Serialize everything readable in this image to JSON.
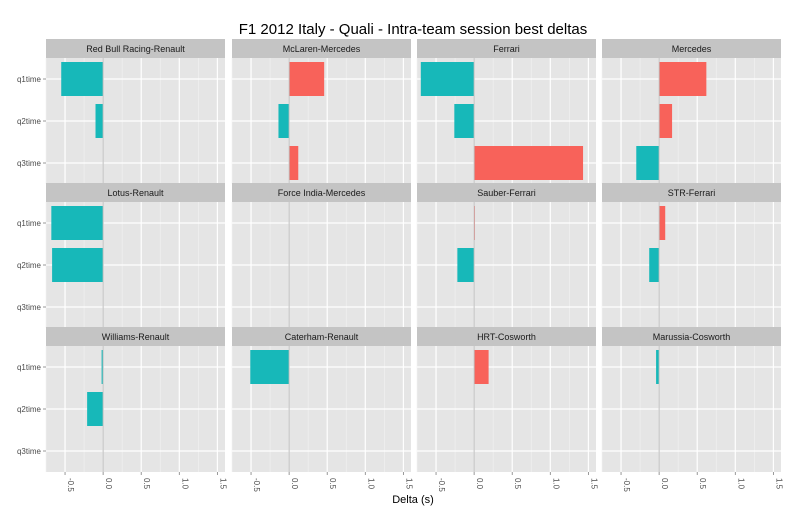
{
  "chart_data": {
    "type": "bar",
    "orientation": "horizontal",
    "title": "F1  2012 Italy - Quali - Intra-team session best deltas",
    "xlabel": "Delta (s)",
    "ylabel": "",
    "xlim": [
      -0.75,
      1.6
    ],
    "xticks": [
      -0.5,
      0.0,
      0.5,
      1.0,
      1.5
    ],
    "xtick_labels": [
      "-0.5",
      "0.0",
      "0.5",
      "1.0",
      "1.5"
    ],
    "categories": [
      "q1time",
      "q2time",
      "q3time"
    ],
    "grid": true,
    "legend": "none",
    "colors": {
      "negative": "#17b8b9",
      "positive": "#f8625a",
      "panel_bg": "#e5e5e5",
      "strip_bg": "#c4c4c4",
      "zero_line": "#bdbdbd"
    },
    "facets": [
      {
        "name": "Red Bull Racing-Renault",
        "values": [
          -0.55,
          -0.1,
          null
        ]
      },
      {
        "name": "McLaren-Mercedes",
        "values": [
          0.46,
          -0.14,
          0.12
        ]
      },
      {
        "name": "Ferrari",
        "values": [
          -0.7,
          -0.26,
          1.43
        ]
      },
      {
        "name": "Mercedes",
        "values": [
          0.62,
          0.17,
          -0.3
        ]
      },
      {
        "name": "Lotus-Renault",
        "values": [
          -0.68,
          -0.67,
          null
        ]
      },
      {
        "name": "Force India-Mercedes",
        "values": [
          null,
          null,
          null
        ]
      },
      {
        "name": "Sauber-Ferrari",
        "values": [
          0.01,
          -0.22,
          null
        ]
      },
      {
        "name": "STR-Ferrari",
        "values": [
          0.08,
          -0.13,
          null
        ]
      },
      {
        "name": "Williams-Renault",
        "values": [
          -0.02,
          -0.21,
          null
        ]
      },
      {
        "name": "Caterham-Renault",
        "values": [
          -0.51,
          null,
          null
        ]
      },
      {
        "name": "HRT-Cosworth",
        "values": [
          0.19,
          null,
          null
        ]
      },
      {
        "name": "Marussia-Cosworth",
        "values": [
          -0.04,
          null,
          null
        ]
      }
    ]
  }
}
